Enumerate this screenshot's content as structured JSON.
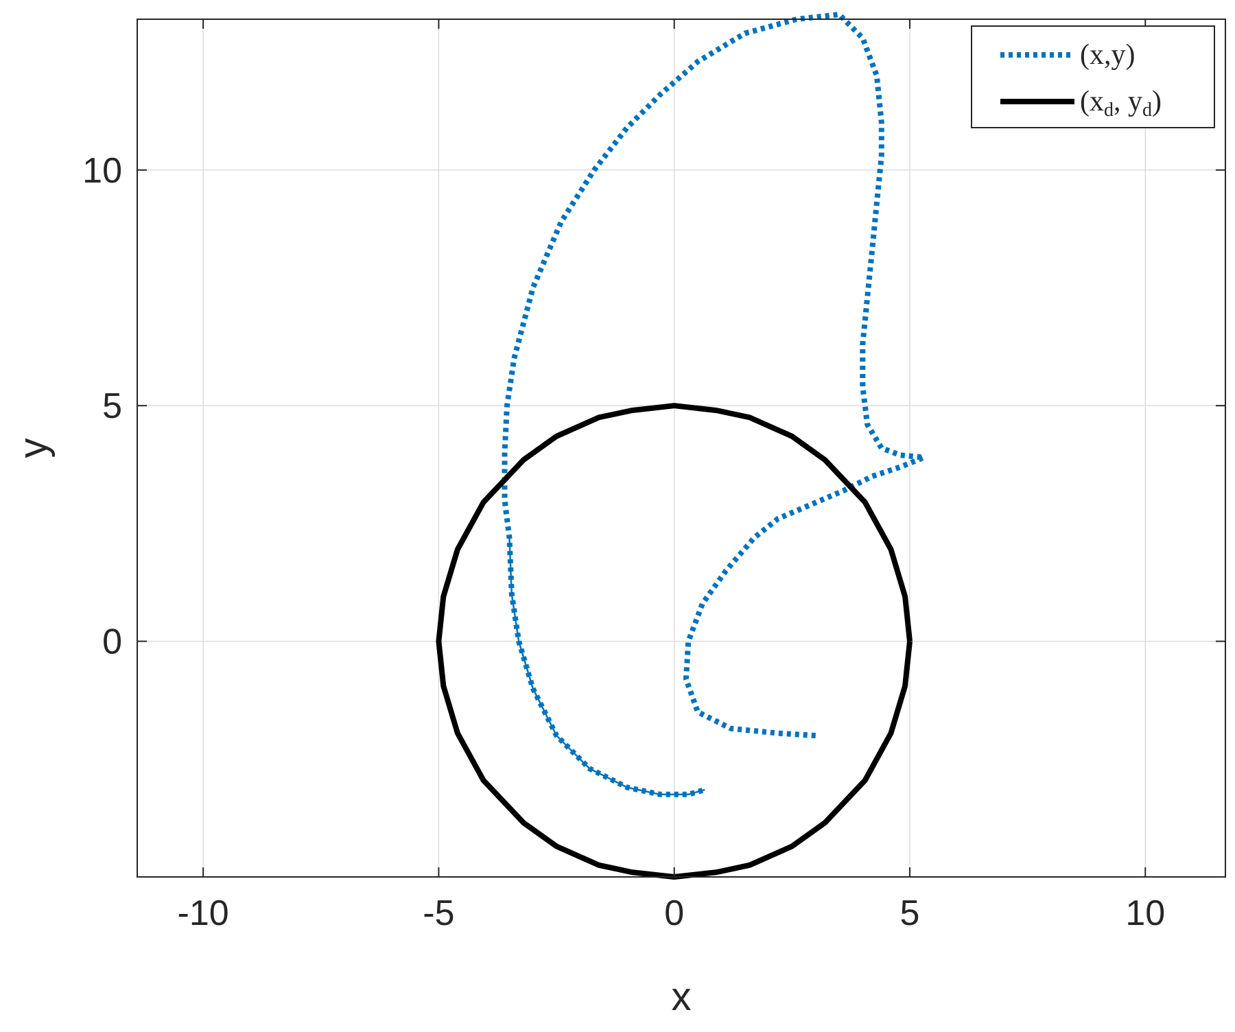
{
  "chart_data": {
    "type": "line",
    "title": "",
    "xlabel": "x",
    "ylabel": "y",
    "xlim": [
      -11.4,
      11.7
    ],
    "ylim": [
      -5,
      13.2
    ],
    "xticks": [
      -10,
      -5,
      0,
      5,
      10
    ],
    "yticks": [
      0,
      5,
      10
    ],
    "xtick_labels": [
      "-10",
      "-5",
      "0",
      "5",
      "10"
    ],
    "ytick_labels": [
      "0",
      "5",
      "10"
    ],
    "grid": true,
    "legend_position": "top-right",
    "series": [
      {
        "name": "(x,y)",
        "style": "dotted",
        "color": "#0072BD",
        "x": [
          3.0,
          2.2,
          1.2,
          0.5,
          0.25,
          0.3,
          0.6,
          1.1,
          1.7,
          2.2,
          2.9,
          3.6,
          4.2,
          4.8,
          5.3,
          4.8,
          4.4,
          4.1,
          4.0,
          4.0,
          4.1,
          4.2,
          4.3,
          4.4,
          4.4,
          4.3,
          4.0,
          3.5,
          2.6,
          1.5,
          0.5,
          -0.3,
          -1.0,
          -1.7,
          -2.4,
          -3.0,
          -3.4,
          -3.55,
          -3.6,
          -3.6,
          -3.5,
          -3.45,
          -3.3,
          -3.0,
          -2.5,
          -1.8,
          -1.0,
          -0.3,
          0.3,
          0.65
        ],
        "y": [
          -2.0,
          -1.95,
          -1.85,
          -1.5,
          -0.8,
          0.0,
          0.8,
          1.5,
          2.2,
          2.6,
          2.9,
          3.2,
          3.5,
          3.7,
          3.9,
          3.95,
          4.1,
          4.6,
          5.4,
          6.3,
          7.3,
          8.3,
          9.3,
          10.3,
          11.0,
          12.0,
          12.8,
          13.3,
          13.2,
          12.9,
          12.3,
          11.6,
          10.9,
          10.0,
          8.9,
          7.5,
          6.0,
          5.0,
          4.0,
          3.0,
          2.2,
          1.0,
          0.0,
          -1.0,
          -2.0,
          -2.7,
          -3.1,
          -3.25,
          -3.25,
          -3.15
        ]
      },
      {
        "name": "(x_d, y_d)",
        "style": "solid",
        "color": "#000000",
        "x": [
          5.0,
          4.9,
          4.6,
          4.05,
          3.2,
          2.5,
          1.6,
          0.9,
          0.0,
          -0.9,
          -1.6,
          -2.5,
          -3.2,
          -4.05,
          -4.6,
          -4.9,
          -5.0,
          -4.9,
          -4.6,
          -4.05,
          -3.2,
          -2.5,
          -1.6,
          -0.9,
          0.0,
          0.9,
          1.6,
          2.5,
          3.2,
          4.05,
          4.6,
          4.9,
          5.0
        ],
        "y": [
          0.0,
          0.95,
          1.95,
          2.95,
          3.85,
          4.35,
          4.75,
          4.9,
          5.0,
          4.9,
          4.75,
          4.35,
          3.85,
          2.95,
          1.95,
          0.95,
          0.0,
          -0.95,
          -1.95,
          -2.95,
          -3.85,
          -4.35,
          -4.75,
          -4.9,
          -5.0,
          -4.9,
          -4.75,
          -4.35,
          -3.85,
          -2.95,
          -1.95,
          -0.95,
          0.0
        ]
      },
      {
        "name": "",
        "style": "solid-thin",
        "color": "#0072BD",
        "x": [
          -3.5,
          -3.45,
          -3.3,
          -3.0,
          -2.5,
          -1.8,
          -1.0,
          -0.3,
          0.3,
          0.65
        ],
        "y": [
          2.2,
          1.0,
          0.0,
          -1.0,
          -2.0,
          -2.7,
          -3.1,
          -3.25,
          -3.25,
          -3.15
        ]
      }
    ],
    "legend": {
      "entries": [
        {
          "series": 0,
          "text_main": "(x,y)"
        },
        {
          "series": 1,
          "text_main": "(x",
          "sub1": "d",
          "mid": ", y",
          "sub2": "d",
          "end": ")"
        }
      ]
    }
  }
}
